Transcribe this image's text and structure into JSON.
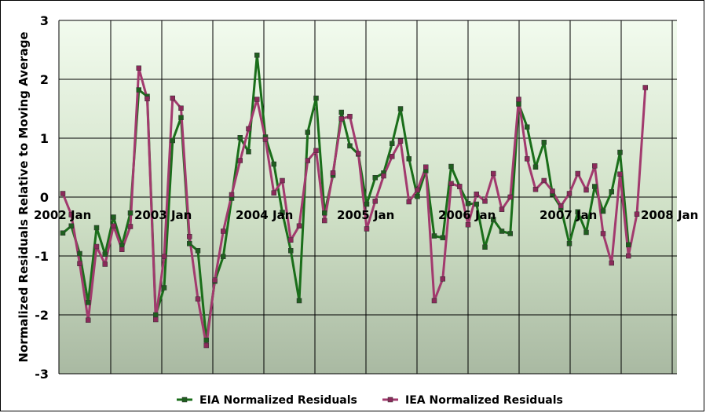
{
  "chart_data": {
    "type": "line",
    "ylabel": "Normalized Residuals Relative to Moving Average",
    "xlabel": "",
    "ylim": [
      -3,
      3
    ],
    "yticks": [
      "3",
      "2",
      "1",
      "0",
      "-1",
      "-2",
      "-3"
    ],
    "x_tick_labels": [
      "2002 Jan",
      "2003 Jan",
      "2004 Jan",
      "2005 Jan",
      "2006 Jan",
      "2007 Jan",
      "2008 Jan"
    ],
    "grid": true,
    "legend_position": "bottom",
    "series": [
      {
        "name": "EIA Normalized Residuals",
        "color": "#1a6e1a",
        "marker_color": "#1f5e1f",
        "values": [
          -0.61,
          -0.49,
          -0.96,
          -1.79,
          -0.52,
          -0.97,
          -0.34,
          -0.82,
          -0.27,
          1.82,
          1.71,
          -2.0,
          -1.54,
          0.96,
          1.35,
          -0.79,
          -0.91,
          -2.43,
          -1.43,
          -1.01,
          -0.02,
          1.01,
          0.77,
          2.41,
          1.02,
          0.56,
          -0.26,
          -0.91,
          -1.76,
          1.1,
          1.68,
          -0.27,
          0.37,
          1.44,
          0.87,
          0.73,
          -0.12,
          0.33,
          0.41,
          0.91,
          1.5,
          0.65,
          0.01,
          0.45,
          -0.66,
          -0.69,
          0.52,
          0.18,
          -0.11,
          -0.12,
          -0.85,
          -0.38,
          -0.58,
          -0.62,
          1.58,
          1.19,
          0.51,
          0.93,
          0.05,
          -0.18,
          -0.79,
          -0.25,
          -0.6,
          0.18,
          -0.24,
          0.09,
          0.76,
          -0.81,
          null,
          null
        ]
      },
      {
        "name": "IEA Normalized Residuals",
        "color": "#a23a6e",
        "marker_color": "#8b2a5a",
        "values": [
          0.06,
          -0.3,
          -1.13,
          -2.09,
          -0.84,
          -1.14,
          -0.49,
          -0.89,
          -0.5,
          2.19,
          1.67,
          -2.08,
          -1.01,
          1.68,
          1.51,
          -0.67,
          -1.73,
          -2.52,
          -1.41,
          -0.58,
          0.04,
          0.62,
          1.16,
          1.66,
          0.98,
          0.07,
          0.28,
          -0.73,
          -0.49,
          0.62,
          0.79,
          -0.4,
          0.41,
          1.33,
          1.37,
          0.74,
          -0.54,
          -0.07,
          0.36,
          0.69,
          0.95,
          -0.08,
          0.12,
          0.51,
          -1.76,
          -1.39,
          0.23,
          0.18,
          -0.47,
          0.05,
          -0.07,
          0.4,
          -0.21,
          0.0,
          1.66,
          0.65,
          0.13,
          0.28,
          0.1,
          -0.15,
          0.06,
          0.4,
          0.12,
          0.53,
          -0.62,
          -1.12,
          0.39,
          -1.0,
          -0.29,
          1.86
        ]
      }
    ]
  }
}
